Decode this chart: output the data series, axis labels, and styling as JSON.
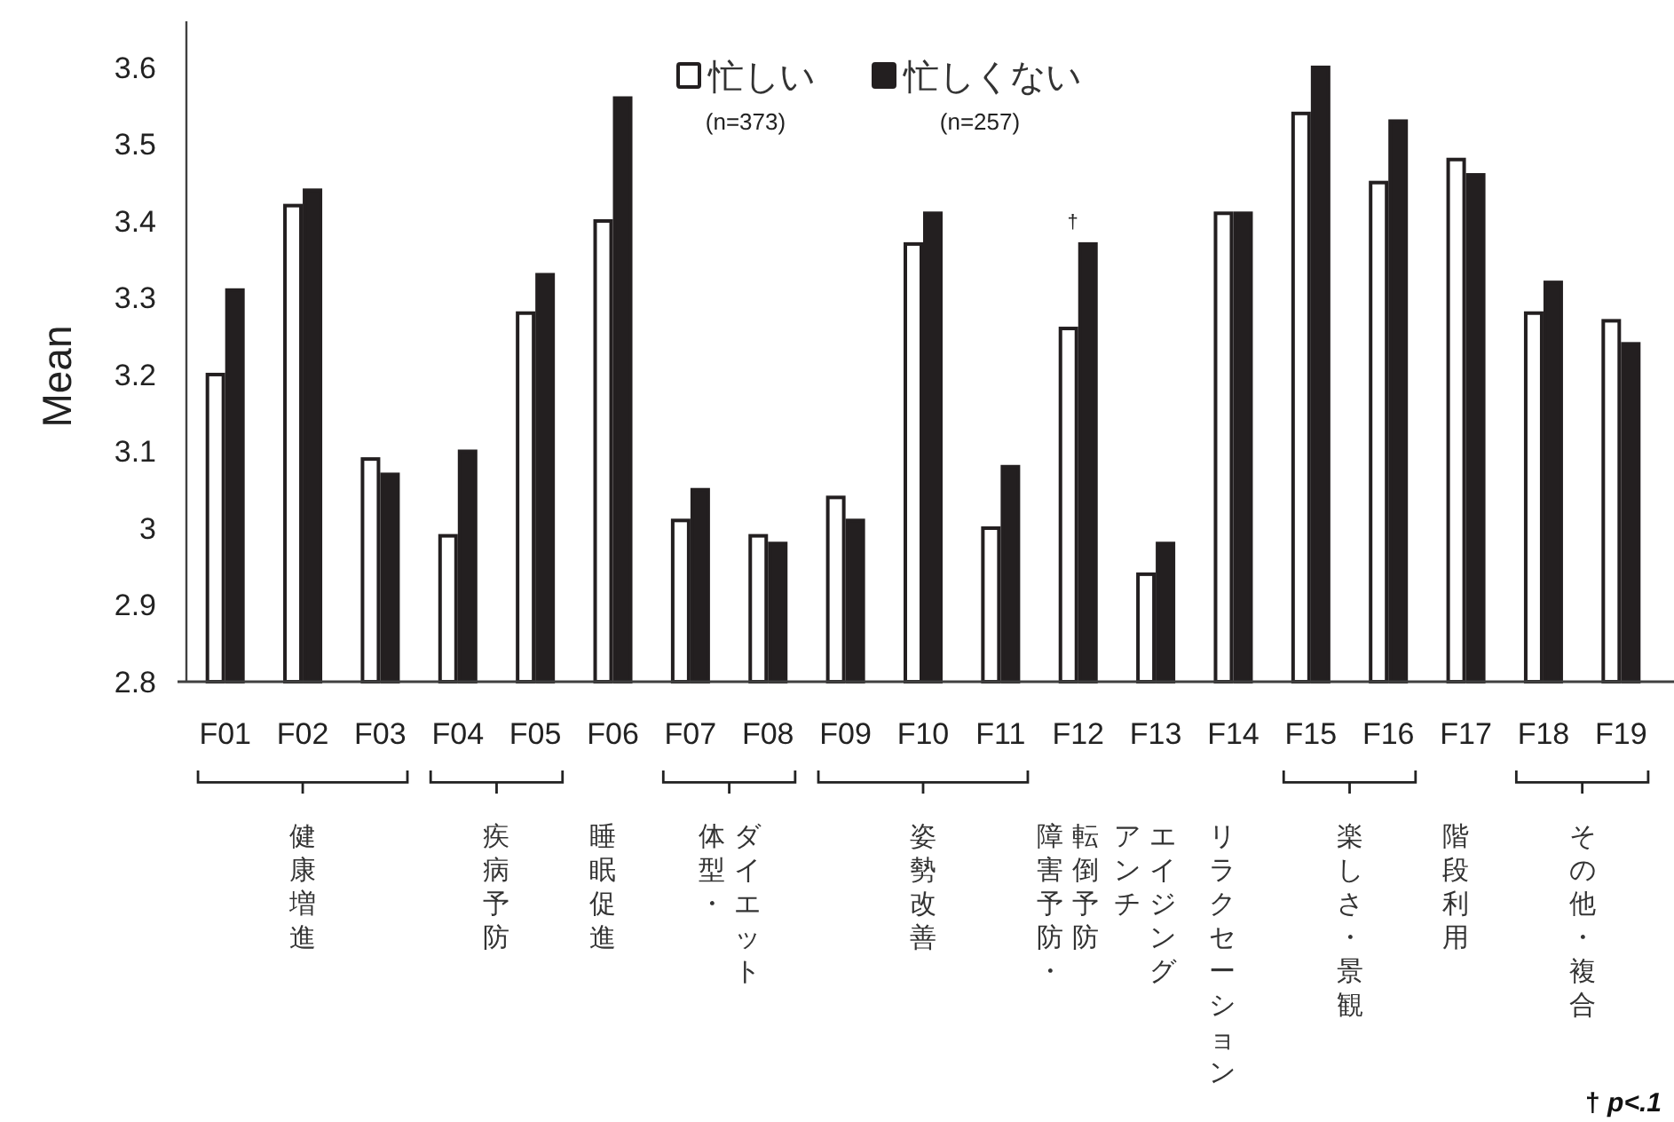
{
  "chart_data": {
    "type": "bar",
    "categories": [
      "F01",
      "F02",
      "F03",
      "F04",
      "F05",
      "F06",
      "F07",
      "F08",
      "F09",
      "F10",
      "F11",
      "F12",
      "F13",
      "F14",
      "F15",
      "F16",
      "F17",
      "F18",
      "F19"
    ],
    "series": [
      {
        "name": "忙しい",
        "color": "#ffffff",
        "values": [
          3.2,
          3.42,
          3.09,
          2.99,
          3.28,
          3.4,
          3.01,
          2.99,
          3.04,
          3.37,
          3.0,
          3.26,
          2.94,
          3.41,
          3.54,
          3.45,
          3.48,
          3.28,
          3.27
        ]
      },
      {
        "name": "忙しくない",
        "color": "#231f20",
        "values": [
          3.31,
          3.44,
          3.07,
          3.1,
          3.33,
          3.56,
          3.05,
          2.98,
          3.01,
          3.41,
          3.08,
          3.37,
          2.98,
          3.41,
          3.6,
          3.53,
          3.46,
          3.32,
          3.24
        ]
      }
    ],
    "ylabel": "Mean",
    "ylim": [
      2.8,
      3.66
    ],
    "yticks": [
      2.8,
      2.9,
      3,
      3.1,
      3.2,
      3.3,
      3.4,
      3.5,
      3.6
    ],
    "legend": "top",
    "annotations": [
      "(n=373)",
      "(n=257)",
      {
        "text": "†",
        "x": "F12",
        "y": 3.37
      },
      "† p<.1",
      "健康増進",
      "疾病予防",
      "睡眠促進",
      "体型・ダイエット",
      "姿勢改善",
      "障害予防・",
      "転倒予防",
      "アンチエイジング",
      "リラクセーション",
      "楽しさ・景観",
      "階段利用",
      "その他・複合"
    ]
  }
}
